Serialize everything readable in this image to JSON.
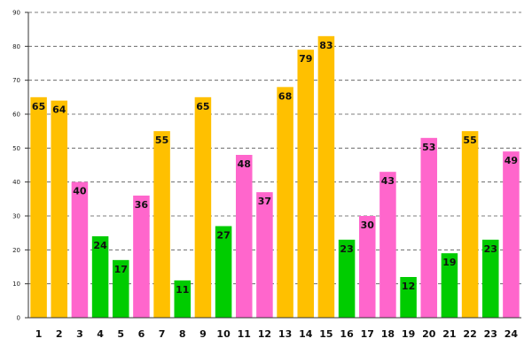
{
  "chart_data": {
    "type": "bar",
    "categories": [
      "1",
      "2",
      "3",
      "4",
      "5",
      "6",
      "7",
      "8",
      "9",
      "10",
      "11",
      "12",
      "13",
      "14",
      "15",
      "16",
      "17",
      "18",
      "19",
      "20",
      "21",
      "22",
      "23",
      "24"
    ],
    "values": [
      65,
      64,
      40,
      24,
      17,
      36,
      55,
      11,
      65,
      27,
      48,
      37,
      68,
      79,
      83,
      23,
      30,
      43,
      12,
      53,
      19,
      55,
      23,
      49
    ],
    "bar_colors": [
      "#ffc000",
      "#ffc000",
      "#ff66cc",
      "#00cc00",
      "#00cc00",
      "#ff66cc",
      "#ffc000",
      "#00cc00",
      "#ffc000",
      "#00cc00",
      "#ff66cc",
      "#ff66cc",
      "#ffc000",
      "#ffc000",
      "#ffc000",
      "#00cc00",
      "#ff66cc",
      "#ff66cc",
      "#00cc00",
      "#ff66cc",
      "#00cc00",
      "#ffc000",
      "#00cc00",
      "#ff66cc"
    ],
    "ylim": [
      0,
      90
    ],
    "yticks": [
      0,
      10,
      20,
      30,
      40,
      50,
      60,
      70,
      80,
      90
    ],
    "grid": true,
    "data_labels": true,
    "title": "",
    "xlabel": "",
    "ylabel": ""
  }
}
